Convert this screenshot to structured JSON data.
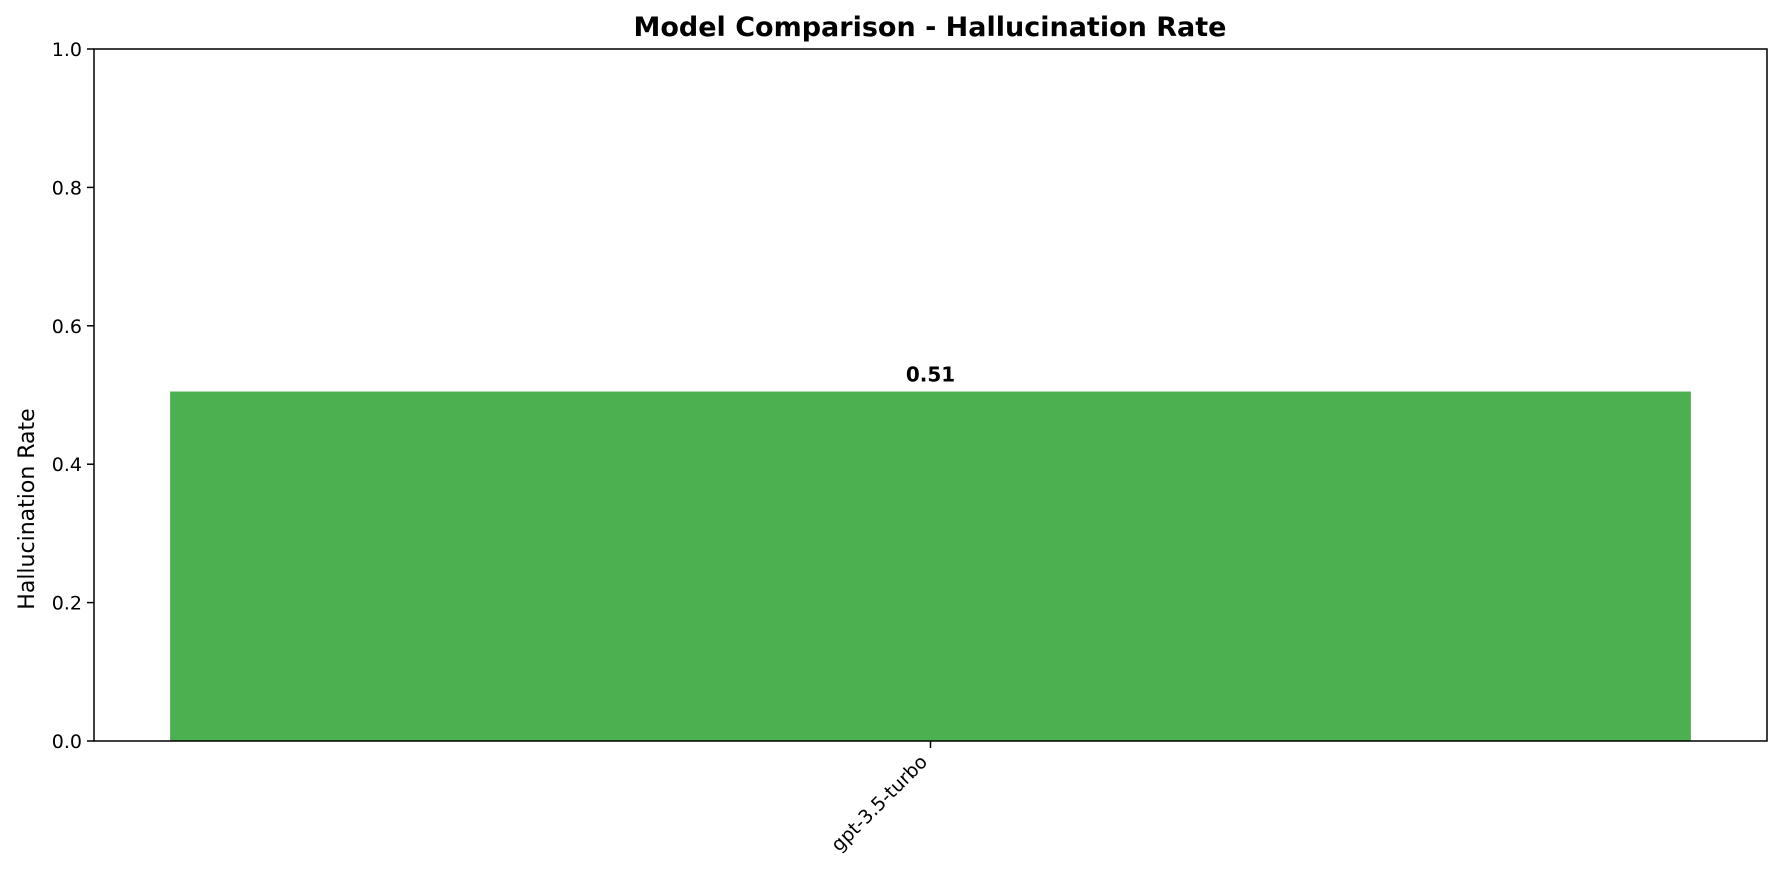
{
  "chart_data": {
    "type": "bar",
    "title": "Model Comparison - Hallucination Rate",
    "xlabel": "",
    "ylabel": "Hallucination Rate",
    "categories": [
      "gpt-3.5-turbo"
    ],
    "values": [
      0.505
    ],
    "data_labels": [
      "0.51"
    ],
    "ylim": [
      0,
      1.0
    ],
    "yticks": [
      0.0,
      0.2,
      0.4,
      0.6,
      0.8,
      1.0
    ],
    "ytick_labels": [
      "0.0",
      "0.2",
      "0.4",
      "0.6",
      "0.8",
      "1.0"
    ],
    "bar_color": "#4caf50",
    "grid": false,
    "legend": "none"
  }
}
